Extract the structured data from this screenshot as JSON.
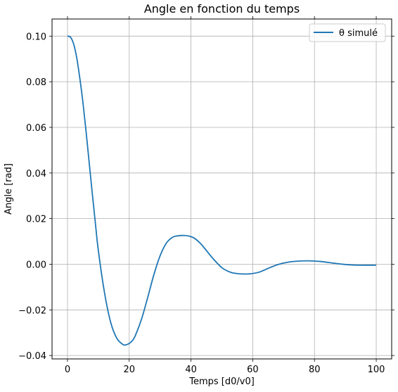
{
  "chart_data": {
    "type": "line",
    "title": "Angle en fonction du temps",
    "xlabel": "Temps [d0/v0]",
    "ylabel": "Angle [rad]",
    "xlim": [
      -5,
      105
    ],
    "ylim": [
      -0.0415,
      0.1075
    ],
    "xticks": [
      0,
      20,
      40,
      60,
      80,
      100
    ],
    "xtick_labels": [
      "0",
      "20",
      "40",
      "60",
      "80",
      "100"
    ],
    "yticks": [
      -0.04,
      -0.02,
      0.0,
      0.02,
      0.04,
      0.06,
      0.08,
      0.1
    ],
    "ytick_labels": [
      "−0.04",
      "−0.02",
      "0.00",
      "0.02",
      "0.04",
      "0.06",
      "0.08",
      "0.10"
    ],
    "grid": true,
    "legend_position": "top-right",
    "series": [
      {
        "name": "θ simulé",
        "color": "#1f77b4",
        "x": [
          0,
          1,
          2,
          3,
          4,
          5,
          6,
          7,
          8,
          9,
          10,
          12,
          14,
          16,
          18,
          19,
          20,
          21,
          22,
          24,
          26,
          28,
          30,
          32,
          34,
          36,
          38,
          39.5,
          41,
          43,
          45,
          47,
          50,
          53,
          56,
          59,
          62,
          65,
          68,
          71,
          74,
          78,
          82,
          86,
          90,
          94,
          100
        ],
        "y": [
          0.1,
          0.0995,
          0.0965,
          0.0905,
          0.0815,
          0.071,
          0.0585,
          0.045,
          0.0315,
          0.0185,
          0.006,
          -0.0125,
          -0.0255,
          -0.0325,
          -0.0352,
          -0.0353,
          -0.0347,
          -0.0335,
          -0.0312,
          -0.024,
          -0.0145,
          -0.0045,
          0.0037,
          0.0092,
          0.0118,
          0.0125,
          0.0126,
          0.0123,
          0.0115,
          0.0092,
          0.006,
          0.0027,
          -0.0015,
          -0.0036,
          -0.0042,
          -0.0042,
          -0.0035,
          -0.0018,
          -0.0002,
          0.0008,
          0.0013,
          0.0015,
          0.0012,
          0.0005,
          -0.0001,
          -0.0004,
          -0.0004
        ]
      }
    ]
  }
}
